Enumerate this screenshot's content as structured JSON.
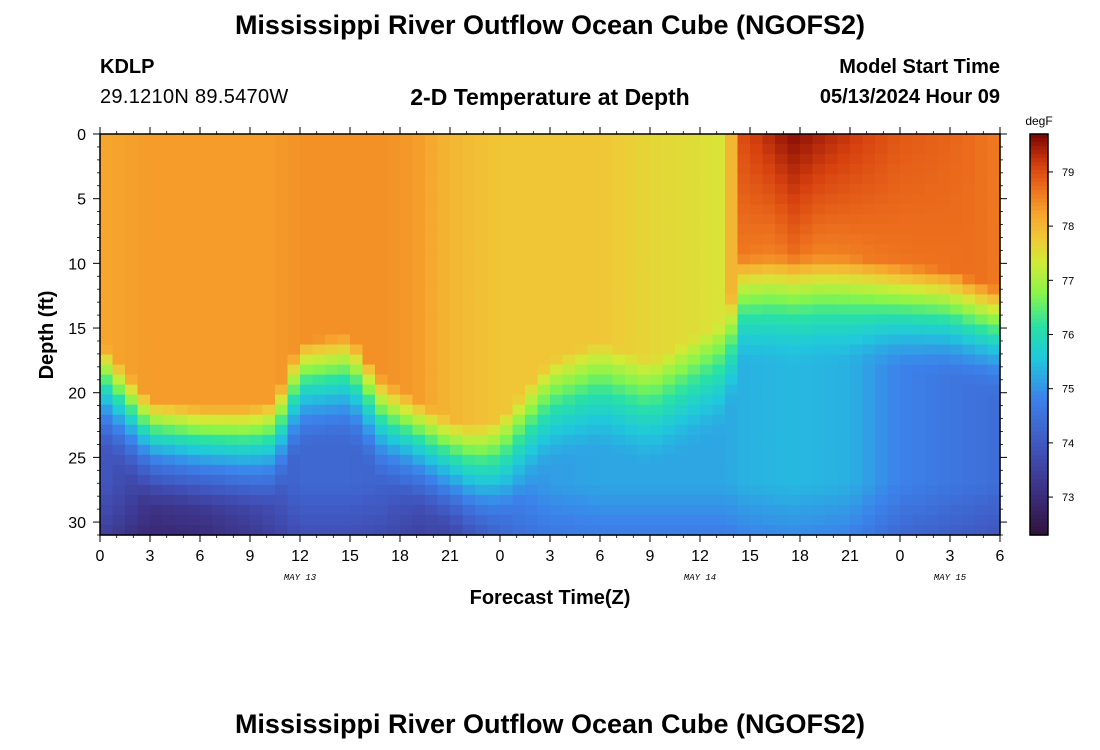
{
  "header": {
    "title": "Mississippi River Outflow Ocean Cube (NGOFS2)",
    "station_id": "KDLP",
    "station_coords": "29.1210N  89.5470W",
    "subtitle": "2-D Temperature at Depth",
    "model_start_label": "Model Start Time",
    "model_start_value": "05/13/2024 Hour 09"
  },
  "footer": {
    "title": "Mississippi River Outflow Ocean Cube (NGOFS2)"
  },
  "chart_data": {
    "type": "heatmap",
    "title": "2-D Temperature at Depth",
    "xlabel": "Forecast Time(Z)",
    "ylabel": "Depth (ft)",
    "x_unit": "hours since 05/13/2024 00Z",
    "xlim": [
      0,
      54
    ],
    "ylim": [
      31,
      0
    ],
    "x_ticks": [
      0,
      3,
      6,
      9,
      12,
      15,
      18,
      21,
      24,
      27,
      30,
      33,
      36,
      39,
      42,
      45,
      48,
      51,
      54
    ],
    "x_tick_labels": [
      "0",
      "3",
      "6",
      "9",
      "12",
      "15",
      "18",
      "21",
      "0",
      "3",
      "6",
      "9",
      "12",
      "15",
      "18",
      "21",
      "0",
      "3",
      "6"
    ],
    "y_ticks": [
      0,
      5,
      10,
      15,
      20,
      25,
      30
    ],
    "y_tick_labels": [
      "0",
      "5",
      "10",
      "15",
      "20",
      "25",
      "30"
    ],
    "date_labels": [
      {
        "x": 12,
        "text": "MAY 13"
      },
      {
        "x": 36,
        "text": "MAY 14"
      },
      {
        "x": 51,
        "text": "MAY 15"
      }
    ],
    "colorbar": {
      "unit": "degF",
      "min": 72.3,
      "max": 79.7,
      "ticks": [
        73,
        74,
        75,
        76,
        77,
        78,
        79
      ],
      "tick_labels": [
        "73",
        "74",
        "75",
        "76",
        "77",
        "78",
        "79"
      ]
    },
    "profiles": [
      {
        "t": 0,
        "surface": 78.2,
        "mixed_depth": 16.0,
        "deep": 74.0
      },
      {
        "t": 3,
        "surface": 78.3,
        "mixed_depth": 20.5,
        "deep": 73.4
      },
      {
        "t": 6,
        "surface": 78.3,
        "mixed_depth": 21.0,
        "deep": 73.5
      },
      {
        "t": 9,
        "surface": 78.3,
        "mixed_depth": 21.0,
        "deep": 73.8
      },
      {
        "t": 10.5,
        "surface": 78.3,
        "mixed_depth": 20.5,
        "deep": 74.0
      },
      {
        "t": 12,
        "surface": 78.4,
        "mixed_depth": 16.0,
        "deep": 74.3
      },
      {
        "t": 15,
        "surface": 78.4,
        "mixed_depth": 15.5,
        "deep": 74.3
      },
      {
        "t": 17,
        "surface": 78.4,
        "mixed_depth": 19.0,
        "deep": 74.2
      },
      {
        "t": 19,
        "surface": 78.3,
        "mixed_depth": 20.5,
        "deep": 74.0
      },
      {
        "t": 21,
        "surface": 78.0,
        "mixed_depth": 22.0,
        "deep": 74.1
      },
      {
        "t": 22.5,
        "surface": 77.9,
        "mixed_depth": 22.5,
        "deep": 74.5
      },
      {
        "t": 24,
        "surface": 77.8,
        "mixed_depth": 22.0,
        "deep": 74.8
      },
      {
        "t": 27,
        "surface": 77.8,
        "mixed_depth": 17.5,
        "deep": 75.1
      },
      {
        "t": 30,
        "surface": 77.8,
        "mixed_depth": 16.0,
        "deep": 75.2
      },
      {
        "t": 33,
        "surface": 77.6,
        "mixed_depth": 17.5,
        "deep": 75.2
      },
      {
        "t": 36,
        "surface": 77.5,
        "mixed_depth": 15.5,
        "deep": 75.2
      },
      {
        "t": 37.5,
        "surface": 77.4,
        "mixed_depth": 14.5,
        "deep": 75.2
      },
      {
        "t": 38.5,
        "surface": 79.0,
        "mixed_depth": 9.5,
        "deep": 75.3
      },
      {
        "t": 41.5,
        "surface": 79.6,
        "mixed_depth": 9.5,
        "deep": 75.4
      },
      {
        "t": 45,
        "surface": 79.2,
        "mixed_depth": 9.5,
        "deep": 75.3
      },
      {
        "t": 48,
        "surface": 78.9,
        "mixed_depth": 10.0,
        "deep": 74.8
      },
      {
        "t": 51,
        "surface": 78.8,
        "mixed_depth": 10.5,
        "deep": 74.6
      },
      {
        "t": 54,
        "surface": 78.6,
        "mixed_depth": 12.0,
        "deep": 74.4
      }
    ]
  }
}
